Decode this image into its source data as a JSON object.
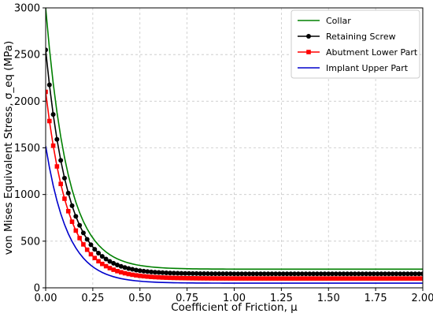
{
  "chart_data": {
    "type": "line",
    "xlabel": "Coefficient of Friction, μ",
    "ylabel": "von Mises Equivalent Stress, σ_eq (MPa)",
    "xlim": [
      0,
      2.0
    ],
    "ylim": [
      0,
      3000
    ],
    "x_ticks": [
      "0.00",
      "0.25",
      "0.50",
      "0.75",
      "1.00",
      "1.25",
      "1.50",
      "1.75",
      "2.00"
    ],
    "y_ticks": [
      "0",
      "500",
      "1000",
      "1500",
      "2000",
      "2500",
      "3000"
    ],
    "grid": true,
    "legend_position": "top-right",
    "x_range": {
      "start": 0,
      "end": 2.0,
      "step": 0.02
    },
    "series": [
      {
        "name": "Collar",
        "color": "#008000",
        "marker": "none",
        "y_at_0": 3000,
        "asymptote": 200,
        "decay_rate": 8.5
      },
      {
        "name": "Retaining Screw",
        "color": "#000000",
        "marker": "circle",
        "y_at_0": 2550,
        "asymptote": 150,
        "decay_rate": 8.5
      },
      {
        "name": "Abutment Lower Part",
        "color": "#ff0000",
        "marker": "square",
        "y_at_0": 2100,
        "asymptote": 100,
        "decay_rate": 8.5
      },
      {
        "name": "Implant Upper Part",
        "color": "#0000cc",
        "marker": "none",
        "y_at_0": 1520,
        "asymptote": 50,
        "decay_rate": 8.5
      }
    ]
  }
}
